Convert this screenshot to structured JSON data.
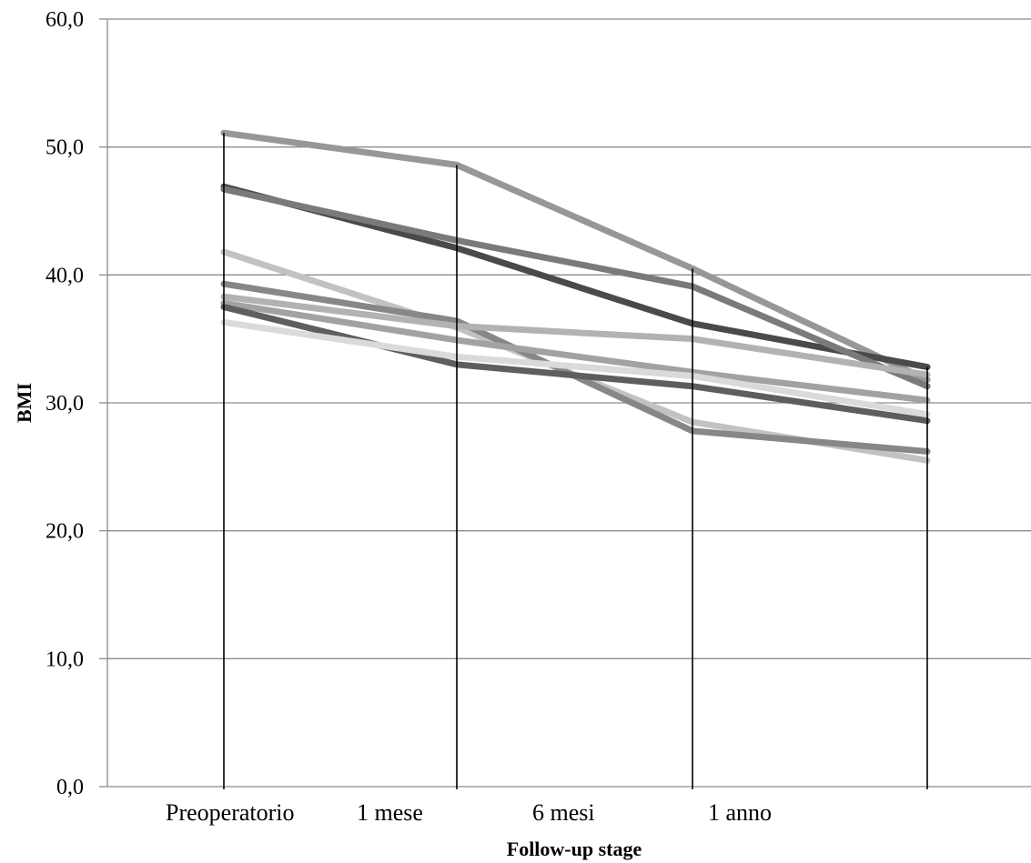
{
  "chart_data": {
    "type": "line",
    "xlabel": "Follow-up stage",
    "ylabel": "BMI",
    "ylim": [
      0,
      60
    ],
    "yticks": [
      "0,0",
      "10,0",
      "20,0",
      "30,0",
      "40,0",
      "50,0",
      "60,0"
    ],
    "categories": [
      "Preoperatorio",
      "1 mese",
      "6 mesi",
      "1 anno"
    ],
    "grid": true,
    "legend": "none",
    "series": [
      {
        "values": [
          51.1,
          48.6,
          40.5,
          31.8
        ],
        "color": "#979797"
      },
      {
        "values": [
          46.9,
          42.1,
          36.2,
          32.8
        ],
        "color": "#4a4a4a"
      },
      {
        "values": [
          46.7,
          42.7,
          39.1,
          31.3
        ],
        "color": "#7a7a7a"
      },
      {
        "values": [
          41.8,
          35.9,
          28.5,
          25.5
        ],
        "color": "#c2c2c2"
      },
      {
        "values": [
          39.3,
          36.4,
          27.8,
          26.2
        ],
        "color": "#878787"
      },
      {
        "values": [
          38.3,
          36.0,
          35.0,
          32.2
        ],
        "color": "#b2b2b2"
      },
      {
        "values": [
          37.8,
          34.9,
          32.4,
          30.2
        ],
        "color": "#a2a2a2"
      },
      {
        "values": [
          37.5,
          33.0,
          31.3,
          28.6
        ],
        "color": "#5e5e5e"
      },
      {
        "values": [
          36.3,
          33.6,
          32.1,
          29.1
        ],
        "color": "#dadada"
      }
    ]
  }
}
